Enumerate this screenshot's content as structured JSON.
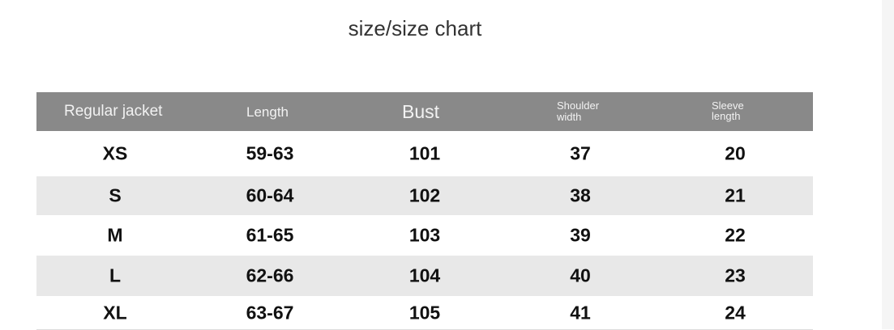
{
  "title": "size/size chart",
  "headers": [
    "Regular jacket",
    "Length",
    "Bust",
    "Shoulder\nwidth",
    "Sleeve\nlength"
  ],
  "header_lines": {
    "shoulder": [
      "Shoulder",
      "width"
    ],
    "sleeve": [
      "Sleeve",
      "length"
    ]
  },
  "rows": [
    [
      "XS",
      "59-63",
      "101",
      "37",
      "20"
    ],
    [
      "S",
      "60-64",
      "102",
      "38",
      "21"
    ],
    [
      "M",
      "61-65",
      "103",
      "39",
      "22"
    ],
    [
      "L",
      "62-66",
      "104",
      "40",
      "23"
    ],
    [
      "XL",
      "63-67",
      "105",
      "41",
      "24"
    ]
  ],
  "colors": {
    "header_bg": "#898989",
    "stripe_bg": "#e8e8e8"
  }
}
